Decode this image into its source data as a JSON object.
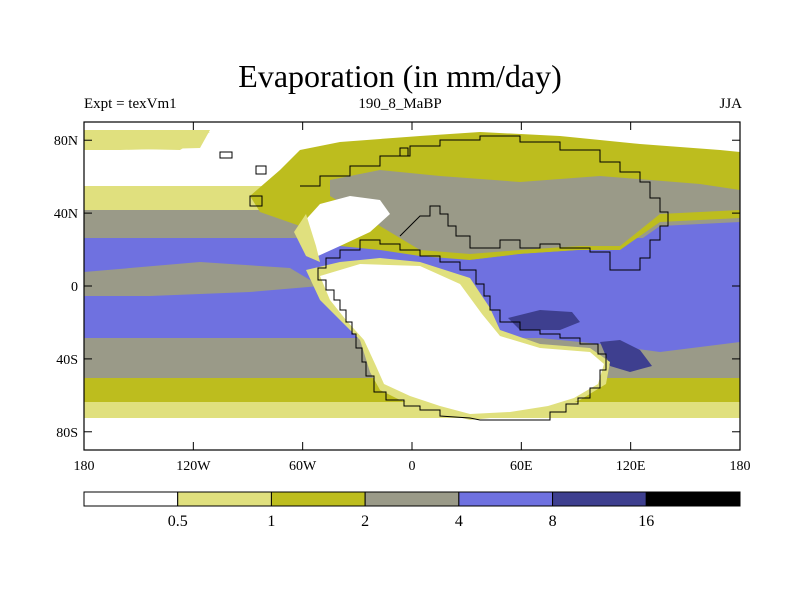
{
  "title": "Evaporation (in mm/day)",
  "subtitle_left": "Expt = texVm1",
  "subtitle_center": "190_8_MaBP",
  "subtitle_right": "JJA",
  "x_ticks": [
    "180",
    "120W",
    "60W",
    "0",
    "60E",
    "120E",
    "180"
  ],
  "y_ticks": [
    "80N",
    "40N",
    "0",
    "40S",
    "80S"
  ],
  "colorbar": {
    "levels": [
      "0.5",
      "1",
      "2",
      "4",
      "8",
      "16"
    ],
    "colors": [
      "#ffffff",
      "#e0e07e",
      "#bdbd1e",
      "#9a9a88",
      "#6f71e0",
      "#3e3f8f",
      "#000000"
    ]
  },
  "colors": {
    "white": "#ffffff",
    "pale": "#e0e07e",
    "olive": "#bdbd1e",
    "gray": "#9a9a88",
    "blue": "#6f71e0",
    "dark_blue": "#3e3f8f"
  }
}
